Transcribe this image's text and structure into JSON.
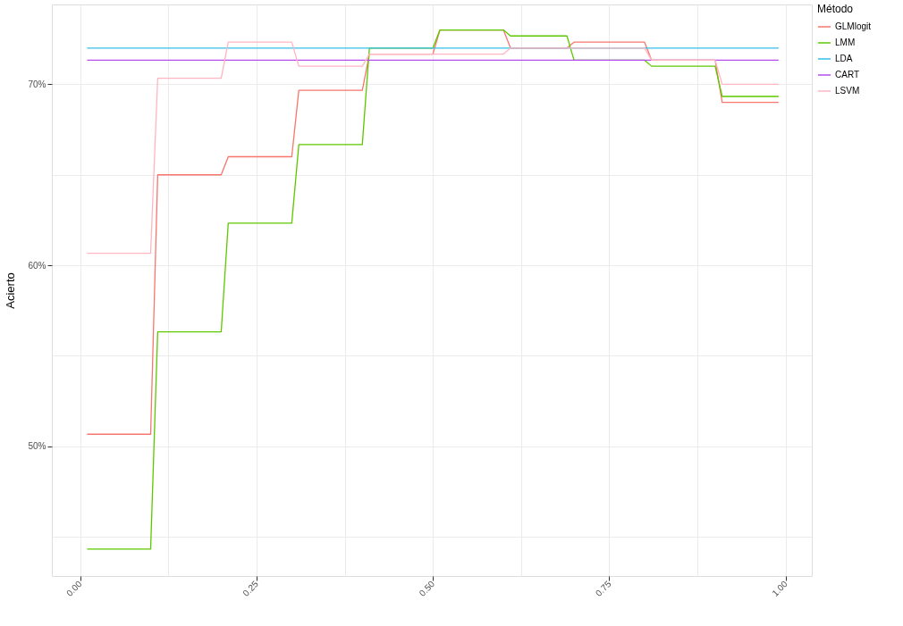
{
  "chart_data": {
    "type": "line",
    "ylabel": "Acierto",
    "legend_title": "Método",
    "legend": "right",
    "grid": true,
    "marker": "none",
    "line_style": "solid",
    "xlim": [
      -0.04,
      1.037
    ],
    "ylim": [
      42.84,
      74.41
    ],
    "xticks": [
      {
        "value": 0,
        "label": "0.00"
      },
      {
        "value": 0.125,
        "label": null
      },
      {
        "value": 0.25,
        "label": "0.25"
      },
      {
        "value": 0.375,
        "label": null
      },
      {
        "value": 0.5,
        "label": "0.50"
      },
      {
        "value": 0.625,
        "label": null
      },
      {
        "value": 0.75,
        "label": "0.75"
      },
      {
        "value": 0.875,
        "label": null
      },
      {
        "value": 1,
        "label": "1.00"
      }
    ],
    "yticks": [
      {
        "value": 45,
        "label": null
      },
      {
        "value": 50,
        "label": "50%"
      },
      {
        "value": 55,
        "label": null
      },
      {
        "value": 60,
        "label": "60%"
      },
      {
        "value": 65,
        "label": null
      },
      {
        "value": 70,
        "label": "70%"
      }
    ],
    "series": [
      {
        "name": "GLMlogit",
        "color": "#f8766d",
        "x": [
          0.01,
          0.1,
          0.11,
          0.2,
          0.21,
          0.3,
          0.31,
          0.4,
          0.41,
          0.5,
          0.51,
          0.6,
          0.61,
          0.69,
          0.7,
          0.8,
          0.81,
          0.9,
          0.91,
          0.99
        ],
        "values": [
          50.67,
          50.67,
          65.0,
          65.0,
          66.0,
          66.0,
          69.67,
          69.67,
          71.67,
          71.67,
          73.0,
          73.0,
          72.0,
          72.0,
          72.33,
          72.33,
          71.33,
          71.33,
          69.0,
          69.0
        ]
      },
      {
        "name": "LMM",
        "color": "#5dc800",
        "x": [
          0.01,
          0.1,
          0.11,
          0.2,
          0.21,
          0.3,
          0.31,
          0.4,
          0.41,
          0.5,
          0.51,
          0.6,
          0.61,
          0.69,
          0.7,
          0.8,
          0.81,
          0.9,
          0.91,
          0.99
        ],
        "values": [
          44.33,
          44.33,
          56.33,
          56.33,
          62.33,
          62.33,
          66.67,
          66.67,
          72.0,
          72.0,
          73.0,
          73.0,
          72.67,
          72.67,
          71.33,
          71.33,
          71.0,
          71.0,
          69.33,
          69.33
        ]
      },
      {
        "name": "LDA",
        "color": "#35bee8",
        "x": [
          0.01,
          0.99
        ],
        "values": [
          72.0,
          72.0
        ]
      },
      {
        "name": "CART",
        "color": "#b64cf0",
        "x": [
          0.01,
          0.99
        ],
        "values": [
          71.33,
          71.33
        ]
      },
      {
        "name": "LSVM",
        "color": "#ffb6c1",
        "x": [
          0.01,
          0.1,
          0.11,
          0.2,
          0.21,
          0.3,
          0.31,
          0.4,
          0.41,
          0.6,
          0.61,
          0.8,
          0.81,
          0.9,
          0.91,
          0.99
        ],
        "values": [
          60.67,
          60.67,
          70.33,
          70.33,
          72.33,
          72.33,
          71.0,
          71.0,
          71.67,
          71.67,
          72.0,
          72.0,
          71.33,
          71.33,
          70.0,
          70.0
        ]
      }
    ]
  }
}
